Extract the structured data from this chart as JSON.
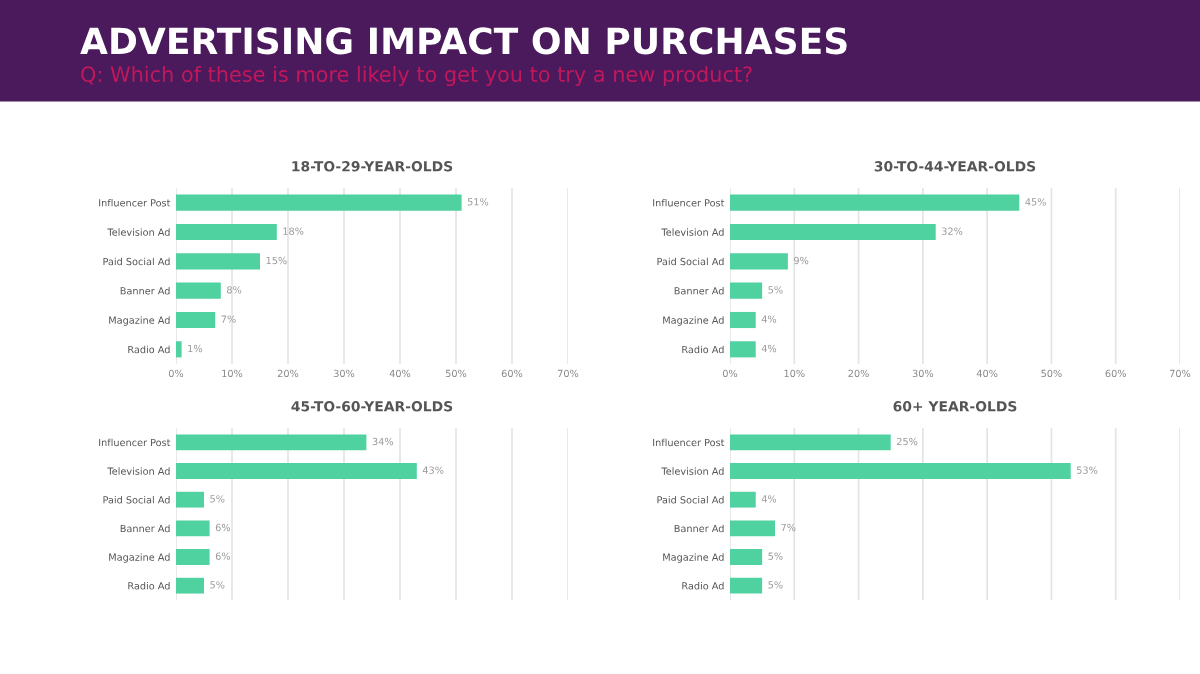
{
  "chart_data": [
    {
      "type": "bar",
      "orientation": "horizontal",
      "title": "18-TO-29-YEAR-OLDS",
      "annotations": [
        "ADVERTISING IMPACT ON PURCHASES",
        "Q: Which of these is more likely to get you to try a new product?"
      ],
      "categories": [
        "Influencer Post",
        "Television Ad",
        "Paid Social Ad",
        "Banner Ad",
        "Magazine Ad",
        "Radio Ad"
      ],
      "values": [
        51,
        18,
        15,
        8,
        7,
        1
      ],
      "value_labels": [
        "51%",
        "18%",
        "15%",
        "8%",
        "7%",
        "1%"
      ],
      "color": "#4fd1a0",
      "xlim": [
        0,
        70
      ],
      "xticks": [
        {
          "value": 0,
          "label": "0%"
        },
        {
          "value": 10,
          "label": "10%"
        },
        {
          "value": 20,
          "label": "20%"
        },
        {
          "value": 30,
          "label": "30%"
        },
        {
          "value": 40,
          "label": "40%"
        },
        {
          "value": 50,
          "label": "50%"
        },
        {
          "value": 60,
          "label": "60%"
        },
        {
          "value": 70,
          "label": "70%"
        }
      ],
      "grid": "x"
    },
    {
      "type": "bar",
      "orientation": "horizontal",
      "title": "30-TO-44-YEAR-OLDS",
      "categories": [
        "Influencer Post",
        "Television Ad",
        "Paid Social Ad",
        "Banner Ad",
        "Magazine Ad",
        "Radio Ad"
      ],
      "values": [
        45,
        32,
        9,
        5,
        4,
        4
      ],
      "value_labels": [
        "45%",
        "32%",
        "9%",
        "5%",
        "4%",
        "4%"
      ],
      "color": "#4fd1a0",
      "xlim": [
        0,
        70
      ],
      "xticks": [
        {
          "value": 0,
          "label": "0%"
        },
        {
          "value": 10,
          "label": "10%"
        },
        {
          "value": 20,
          "label": "20%"
        },
        {
          "value": 30,
          "label": "30%"
        },
        {
          "value": 40,
          "label": "40%"
        },
        {
          "value": 50,
          "label": "50%"
        },
        {
          "value": 60,
          "label": "60%"
        },
        {
          "value": 70,
          "label": "70%"
        }
      ],
      "grid": "x"
    },
    {
      "type": "bar",
      "orientation": "horizontal",
      "title": "45-TO-60-YEAR-OLDS",
      "categories": [
        "Influencer Post",
        "Television Ad",
        "Paid Social Ad",
        "Banner Ad",
        "Magazine Ad",
        "Radio Ad"
      ],
      "values": [
        34,
        43,
        5,
        6,
        6,
        5
      ],
      "value_labels": [
        "34%",
        "43%",
        "5%",
        "6%",
        "6%",
        "5%"
      ],
      "color": "#4fd1a0",
      "xlim": [
        0,
        70
      ],
      "grid": "x"
    },
    {
      "type": "bar",
      "orientation": "horizontal",
      "title": "60+ YEAR-OLDS",
      "categories": [
        "Influencer Post",
        "Television Ad",
        "Paid Social Ad",
        "Banner Ad",
        "Magazine Ad",
        "Radio Ad"
      ],
      "values": [
        25,
        53,
        4,
        7,
        5,
        5
      ],
      "value_labels": [
        "25%",
        "53%",
        "4%",
        "7%",
        "5%",
        "5%"
      ],
      "color": "#4fd1a0",
      "xlim": [
        0,
        70
      ],
      "grid": "x"
    }
  ]
}
